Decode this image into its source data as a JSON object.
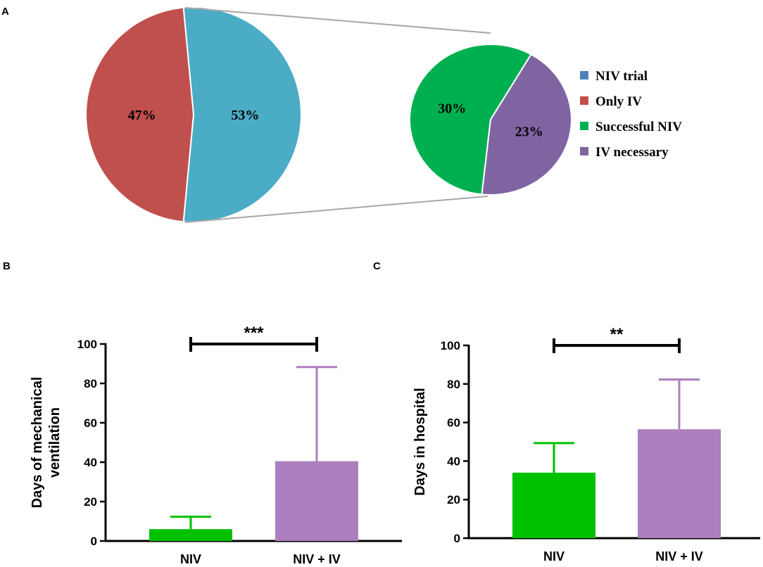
{
  "chart_data": [
    {
      "panel": "A",
      "type": "pie",
      "slices": [
        {
          "label": "Only IV",
          "value": 47,
          "display": "47%",
          "color": "#c0504d"
        },
        {
          "label": "NIV trial",
          "value": 53,
          "display": "53%",
          "color": "#4bacc6"
        }
      ],
      "sub_pie": {
        "parent": "NIV trial",
        "slices": [
          {
            "label": "Successful NIV",
            "value": 30,
            "display": "30%",
            "color": "#00b050"
          },
          {
            "label": "IV necessary",
            "value": 23,
            "display": "23%",
            "color": "#8064a2"
          }
        ]
      },
      "legend": [
        {
          "label": "NIV trial",
          "color": "#4f81bd"
        },
        {
          "label": "Only IV",
          "color": "#c0504d"
        },
        {
          "label": "Successful NIV",
          "color": "#00b050"
        },
        {
          "label": "IV necessary",
          "color": "#8064a2"
        }
      ]
    },
    {
      "panel": "B",
      "type": "bar",
      "categories": [
        "NIV",
        "NIV + IV"
      ],
      "values": [
        6,
        40.5
      ],
      "error_upper": [
        12.3,
        88.3
      ],
      "colors": [
        "#00c000",
        "#ad7fbf"
      ],
      "ylabel_lines": [
        "Days of mechanical",
        "ventilation"
      ],
      "ylim": [
        0,
        100
      ],
      "yticks": [
        "0",
        "20",
        "40",
        "60",
        "80",
        "100"
      ],
      "significance": "***"
    },
    {
      "panel": "C",
      "type": "bar",
      "categories": [
        "NIV",
        "NIV + IV"
      ],
      "values": [
        34,
        56.5
      ],
      "error_upper": [
        49.3,
        82.3
      ],
      "colors": [
        "#00c000",
        "#ad7fbf"
      ],
      "ylabel_lines": [
        "Days in hospital"
      ],
      "ylim": [
        0,
        100
      ],
      "yticks": [
        "0",
        "20",
        "40",
        "60",
        "80",
        "100"
      ],
      "significance": "**"
    }
  ]
}
